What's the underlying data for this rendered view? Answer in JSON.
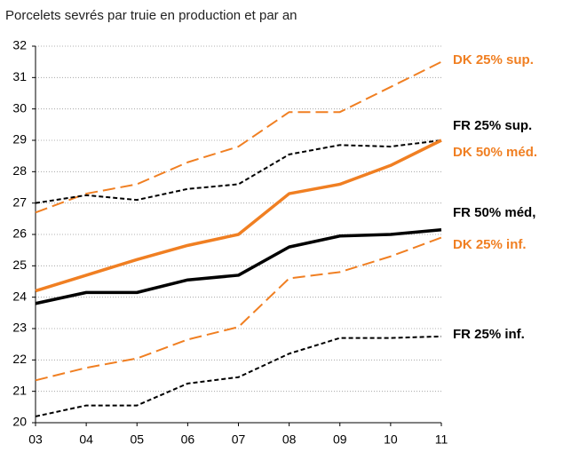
{
  "chart_data": {
    "type": "line",
    "title": "Porcelets sevrés par truie en production et par an",
    "categories": [
      "03",
      "04",
      "05",
      "06",
      "07",
      "08",
      "09",
      "10",
      "11"
    ],
    "ylim": [
      20,
      32
    ],
    "yticks": [
      20,
      21,
      22,
      23,
      24,
      25,
      26,
      27,
      28,
      29,
      30,
      31,
      32
    ],
    "grid": true,
    "series": [
      {
        "name": "DK 25% sup.",
        "color": "#f07f22",
        "line_style": "long-dash",
        "values": [
          26.7,
          27.3,
          27.6,
          28.3,
          28.8,
          29.9,
          29.9,
          30.7,
          31.5
        ]
      },
      {
        "name": "FR 25% sup.",
        "color": "#000000",
        "line_style": "short-dash",
        "values": [
          27.0,
          27.25,
          27.1,
          27.45,
          27.6,
          28.55,
          28.85,
          28.8,
          29.0
        ]
      },
      {
        "name": "DK 50% méd.",
        "color": "#f07f22",
        "line_style": "solid",
        "values": [
          24.2,
          24.7,
          25.2,
          25.65,
          26.0,
          27.3,
          27.6,
          28.2,
          29.0
        ]
      },
      {
        "name": "FR 50% méd,",
        "color": "#000000",
        "line_style": "solid",
        "values": [
          23.8,
          24.15,
          24.15,
          24.55,
          24.7,
          25.6,
          25.95,
          26.0,
          26.15
        ]
      },
      {
        "name": "DK 25% inf.",
        "color": "#f07f22",
        "line_style": "long-dash",
        "values": [
          21.35,
          21.75,
          22.05,
          22.65,
          23.05,
          24.6,
          24.8,
          25.3,
          25.9
        ]
      },
      {
        "name": "FR 25% inf.",
        "color": "#000000",
        "line_style": "short-dash",
        "values": [
          20.2,
          20.55,
          20.55,
          21.25,
          21.45,
          22.2,
          22.7,
          22.7,
          22.75
        ]
      }
    ]
  }
}
